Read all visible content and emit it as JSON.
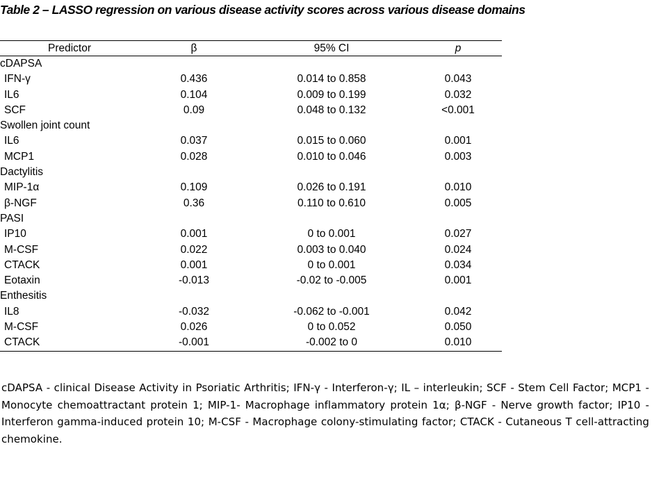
{
  "caption": "Table 2 – LASSO regression on various disease activity scores across various disease domains",
  "table": {
    "headers": [
      "Predictor",
      "β",
      "95% CI",
      "p"
    ],
    "rows": [
      {
        "type": "group",
        "label": "cDAPSA"
      },
      {
        "type": "data",
        "cells": [
          "IFN-γ",
          "0.436",
          "0.014 to 0.858",
          "0.043"
        ]
      },
      {
        "type": "data",
        "cells": [
          "IL6",
          "0.104",
          "0.009 to 0.199",
          "0.032"
        ]
      },
      {
        "type": "data",
        "cells": [
          "SCF",
          "0.09",
          "0.048 to 0.132",
          "<0.001"
        ]
      },
      {
        "type": "group",
        "label": "Swollen joint count"
      },
      {
        "type": "data",
        "cells": [
          "IL6",
          "0.037",
          "0.015 to 0.060",
          "0.001"
        ]
      },
      {
        "type": "data",
        "cells": [
          "MCP1",
          "0.028",
          "0.010 to 0.046",
          "0.003"
        ]
      },
      {
        "type": "group",
        "label": "Dactylitis"
      },
      {
        "type": "data",
        "cells": [
          "MIP-1α",
          "0.109",
          "0.026 to 0.191",
          "0.010"
        ]
      },
      {
        "type": "data",
        "cells": [
          "β-NGF",
          "0.36",
          "0.110 to 0.610",
          "0.005"
        ]
      },
      {
        "type": "group",
        "label": "PASI"
      },
      {
        "type": "data",
        "cells": [
          "IP10",
          "0.001",
          "0 to 0.001",
          "0.027"
        ]
      },
      {
        "type": "data",
        "cells": [
          "M-CSF",
          "0.022",
          "0.003 to 0.040",
          "0.024"
        ]
      },
      {
        "type": "data",
        "cells": [
          "CTACK",
          "0.001",
          "0 to 0.001",
          "0.034"
        ]
      },
      {
        "type": "data",
        "cells": [
          "Eotaxin",
          "-0.013",
          "-0.02 to -0.005",
          "0.001"
        ]
      },
      {
        "type": "group",
        "label": "Enthesitis"
      },
      {
        "type": "data",
        "cells": [
          "IL8",
          "-0.032",
          "-0.062 to -0.001",
          "0.042"
        ]
      },
      {
        "type": "data",
        "cells": [
          "M-CSF",
          "0.026",
          "0 to 0.052",
          "0.050"
        ]
      },
      {
        "type": "data",
        "cells": [
          "CTACK",
          "-0.001",
          "-0.002 to 0",
          "0.010"
        ]
      }
    ]
  },
  "footnote": "cDAPSA - clinical Disease Activity in Psoriatic Arthritis; IFN-γ - Interferon-γ; IL – interleukin; SCF - Stem Cell Factor; MCP1 - Monocyte chemoattractant protein 1; MIP-1- Macrophage inflammatory protein 1α; β-NGF - Nerve growth factor; IP10 - Interferon gamma-induced protein 10; M-CSF - Macrophage colony-stimulating factor; CTACK - Cutaneous T cell-attracting chemokine."
}
